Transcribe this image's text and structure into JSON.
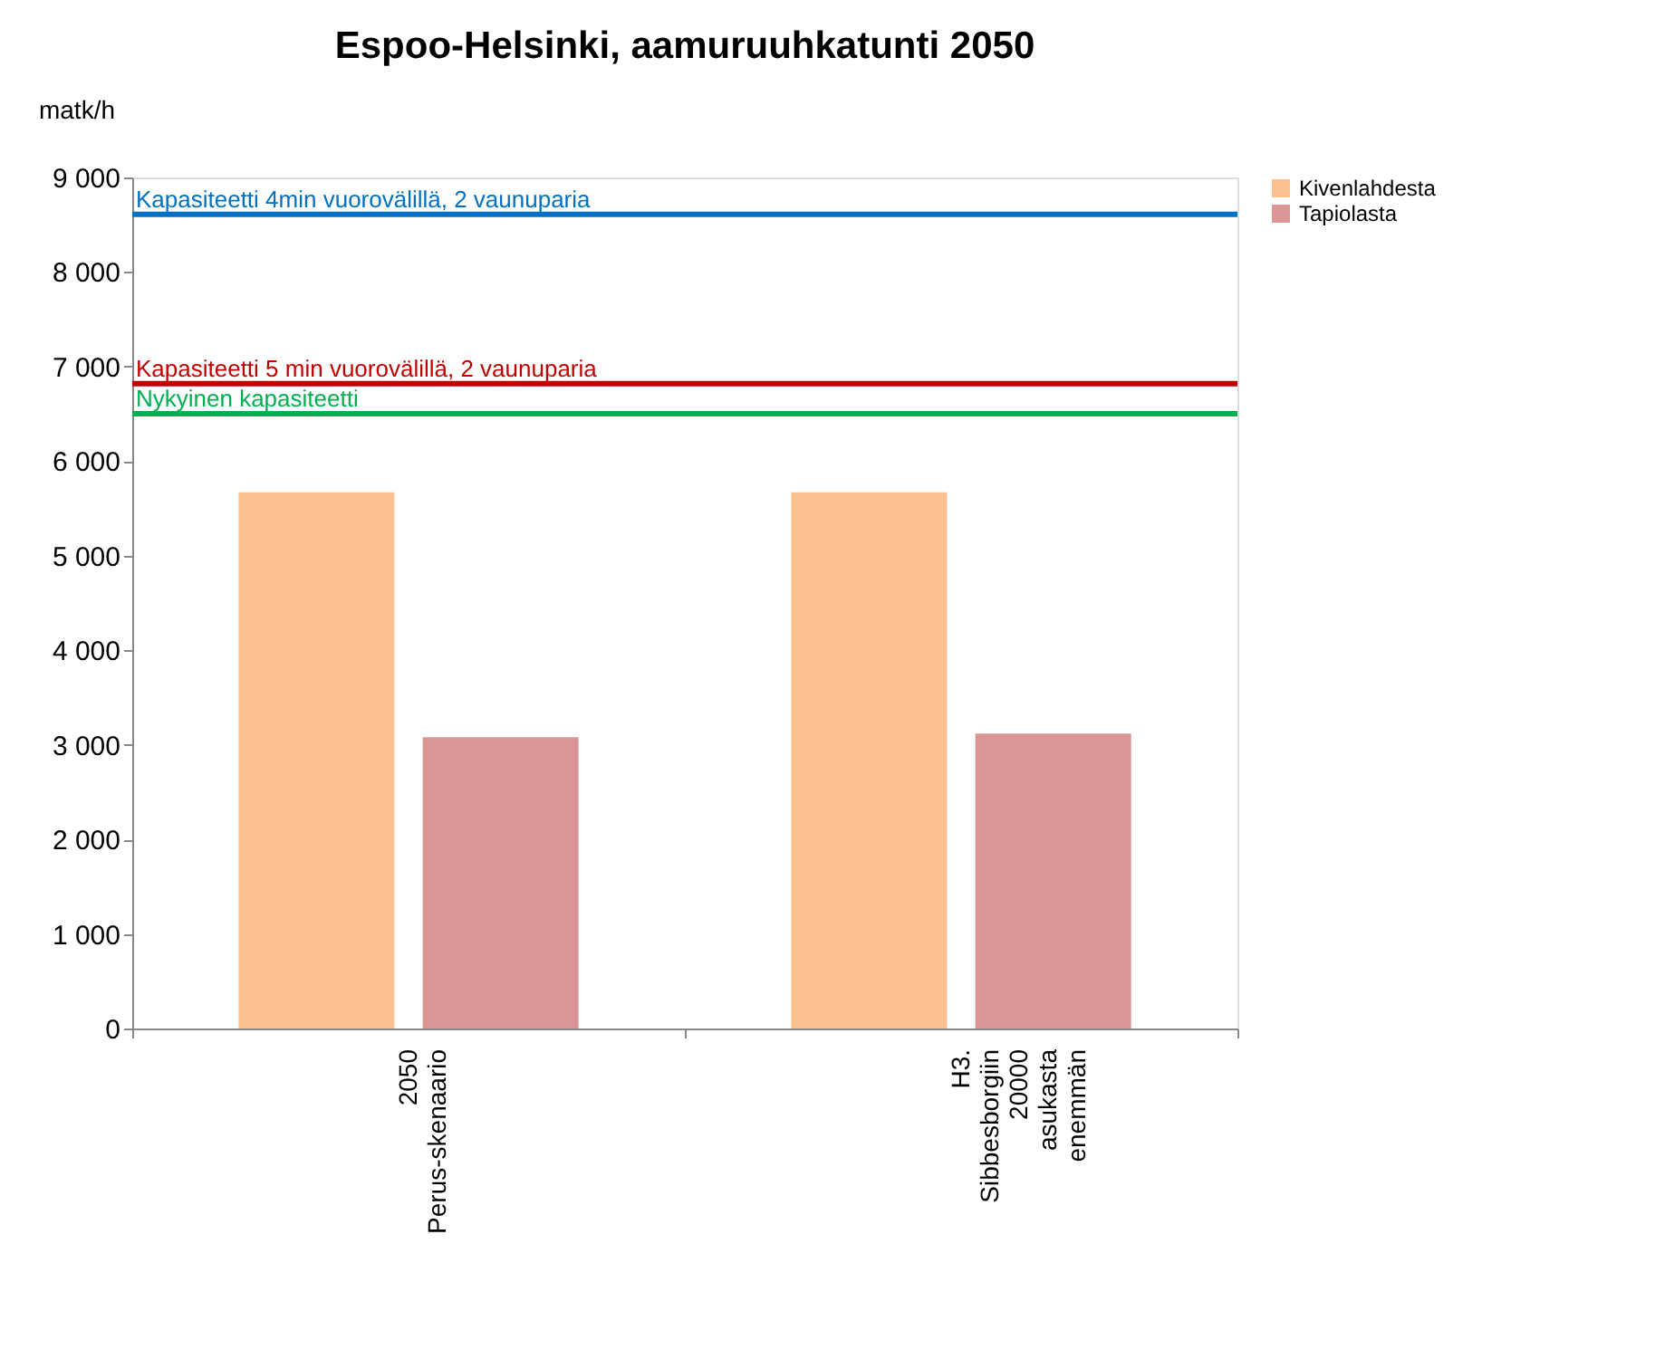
{
  "chart_data": {
    "type": "bar",
    "title": "Espoo-Helsinki, aamuruuhkatunti 2050",
    "ylabel": "matk/h",
    "categories": [
      "2050 Perus-skenaario",
      "H3. Sibbesborgiin 20000 asukasta enemmän"
    ],
    "series": [
      {
        "name": "Kivenlahdesta",
        "color": "#fac090",
        "values": [
          5670,
          5670
        ]
      },
      {
        "name": "Tapiolasta",
        "color": "#d99694",
        "values": [
          3080,
          3120
        ]
      }
    ],
    "ylim": [
      0,
      9000
    ],
    "yticks": [
      {
        "value": 0,
        "label": "0"
      },
      {
        "value": 1000,
        "label": "1 000"
      },
      {
        "value": 2000,
        "label": "2 000"
      },
      {
        "value": 3000,
        "label": "3 000"
      },
      {
        "value": 4000,
        "label": "4 000"
      },
      {
        "value": 5000,
        "label": "5 000"
      },
      {
        "value": 6000,
        "label": "6 000"
      },
      {
        "value": 7000,
        "label": "7 000"
      },
      {
        "value": 8000,
        "label": "8 000"
      },
      {
        "value": 9000,
        "label": "9 000"
      }
    ],
    "ref_lines": [
      {
        "axis": "y",
        "value": 8610,
        "label": "Kapasiteetti 4min vuorovälillä, 2 vaunuparia",
        "color": "#0070c0"
      },
      {
        "axis": "y",
        "value": 6820,
        "label": "Kapasiteetti 5 min vuorovälillä, 2 vaunuparia",
        "color": "#c00000"
      },
      {
        "axis": "y",
        "value": 6500,
        "label": "Nykyinen kapasiteetti",
        "color": "#00b050"
      }
    ],
    "grid": false,
    "legend": "right"
  }
}
